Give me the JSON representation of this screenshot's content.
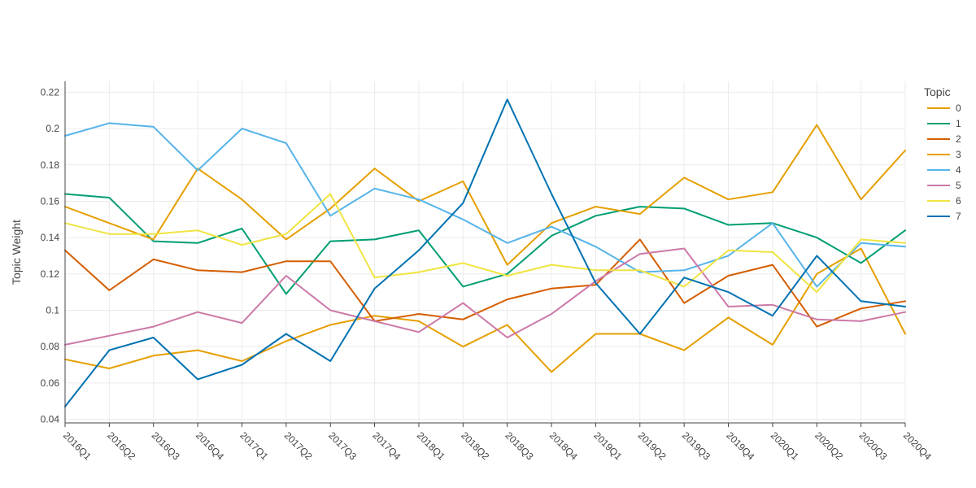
{
  "chart_data": {
    "type": "line",
    "title": "",
    "xlabel": "",
    "ylabel": "Topic Weight",
    "ylim": [
      0.038,
      0.226
    ],
    "yticks": [
      0.04,
      0.06,
      0.08,
      0.1,
      0.12,
      0.14,
      0.16,
      0.18,
      0.2,
      0.22
    ],
    "ytick_labels": [
      "0.04",
      "0.06",
      "0.08",
      "0.1",
      "0.12",
      "0.14",
      "0.16",
      "0.18",
      "0.2",
      "0.22"
    ],
    "grid": true,
    "legend": {
      "title": "Topic",
      "placement": "right"
    },
    "categories": [
      "2016Q1",
      "2016Q2",
      "2016Q3",
      "2016Q4",
      "2017Q1",
      "2017Q2",
      "2017Q3",
      "2017Q4",
      "2018Q1",
      "2018Q2",
      "2018Q3",
      "2018Q4",
      "2019Q1",
      "2019Q2",
      "2019Q3",
      "2019Q4",
      "2020Q1",
      "2020Q2",
      "2020Q3",
      "2020Q4"
    ],
    "series": [
      {
        "name": "0",
        "color": "#E69F00",
        "values": [
          0.073,
          0.068,
          0.075,
          0.078,
          0.072,
          0.083,
          0.092,
          0.097,
          0.094,
          0.08,
          0.092,
          0.066,
          0.087,
          0.087,
          0.078,
          0.096,
          0.081,
          0.12,
          0.134,
          0.087
        ]
      },
      {
        "name": "1",
        "color": "#009E73",
        "values": [
          0.164,
          0.162,
          0.138,
          0.137,
          0.145,
          0.109,
          0.138,
          0.139,
          0.144,
          0.113,
          0.12,
          0.141,
          0.152,
          0.157,
          0.156,
          0.147,
          0.148,
          0.14,
          0.126,
          0.144
        ]
      },
      {
        "name": "2",
        "color": "#D55E00",
        "values": [
          0.133,
          0.111,
          0.128,
          0.122,
          0.121,
          0.127,
          0.127,
          0.094,
          0.098,
          0.095,
          0.106,
          0.112,
          0.114,
          0.139,
          0.104,
          0.119,
          0.125,
          0.091,
          0.101,
          0.105
        ]
      },
      {
        "name": "3",
        "color": "#E69F00",
        "values": [
          0.157,
          0.148,
          0.139,
          0.178,
          0.161,
          0.139,
          0.156,
          0.178,
          0.16,
          0.171,
          0.125,
          0.148,
          0.157,
          0.153,
          0.173,
          0.161,
          0.165,
          0.202,
          0.161,
          0.188
        ]
      },
      {
        "name": "4",
        "color": "#56B4E9",
        "values": [
          0.196,
          0.203,
          0.201,
          0.177,
          0.2,
          0.192,
          0.152,
          0.167,
          0.161,
          0.15,
          0.137,
          0.146,
          0.135,
          0.121,
          0.122,
          0.13,
          0.148,
          0.113,
          0.137,
          0.135
        ]
      },
      {
        "name": "5",
        "color": "#CC79A7",
        "values": [
          0.081,
          0.086,
          0.091,
          0.099,
          0.093,
          0.119,
          0.1,
          0.094,
          0.088,
          0.104,
          0.085,
          0.098,
          0.116,
          0.131,
          0.134,
          0.102,
          0.103,
          0.095,
          0.094,
          0.099
        ]
      },
      {
        "name": "6",
        "color": "#F0E442",
        "values": [
          0.148,
          0.142,
          0.142,
          0.144,
          0.136,
          0.142,
          0.164,
          0.118,
          0.121,
          0.126,
          0.119,
          0.125,
          0.122,
          0.122,
          0.113,
          0.133,
          0.132,
          0.11,
          0.139,
          0.137
        ]
      },
      {
        "name": "7",
        "color": "#0072B2",
        "values": [
          0.047,
          0.078,
          0.085,
          0.062,
          0.07,
          0.087,
          0.072,
          0.112,
          0.133,
          0.159,
          0.216,
          0.164,
          0.115,
          0.087,
          0.118,
          0.11,
          0.097,
          0.13,
          0.105,
          0.102
        ]
      }
    ]
  }
}
